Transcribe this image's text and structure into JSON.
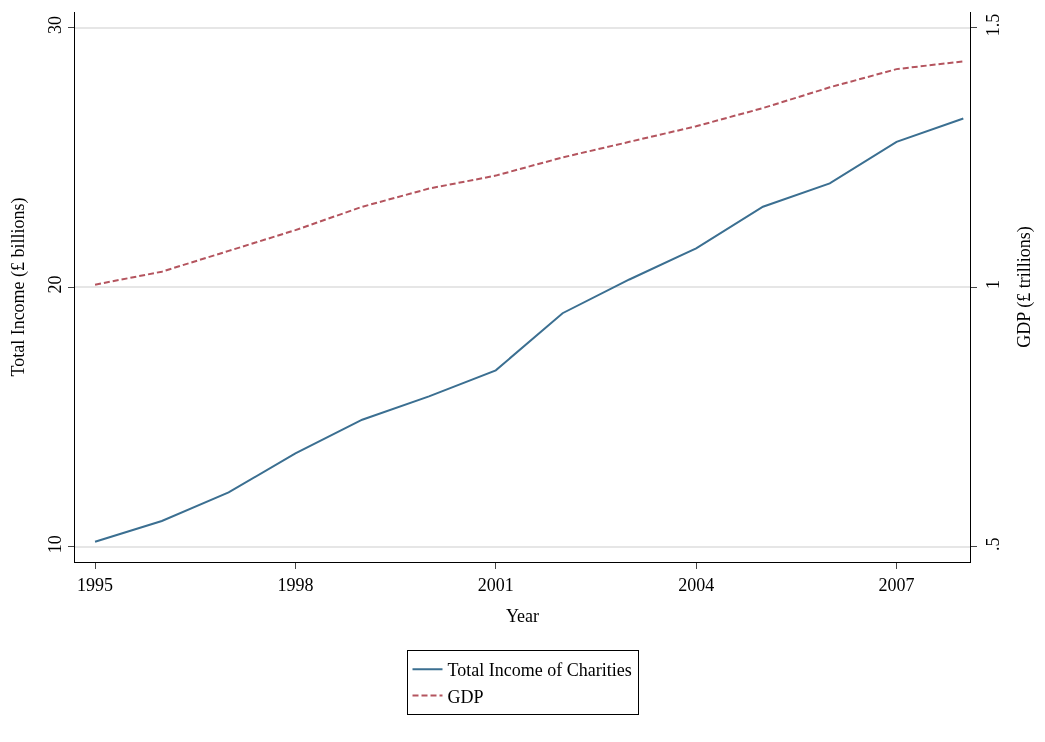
{
  "chart_data": {
    "type": "line",
    "xlabel": "Year",
    "ylabel": "Total Income (£ billions)",
    "y2label": "GDP (£ trillions)",
    "x": [
      1995,
      1996,
      1997,
      1998,
      1999,
      2000,
      2001,
      2002,
      2003,
      2004,
      2005,
      2006,
      2007,
      2008
    ],
    "series": [
      {
        "name": "Total Income of Charities",
        "color": "#3b6f91",
        "line_style": "solid",
        "marker": "none",
        "values": [
          10.2,
          11.0,
          12.1,
          13.6,
          14.9,
          15.8,
          16.8,
          19.0,
          20.3,
          21.5,
          23.1,
          24.0,
          25.6,
          26.5
        ]
      },
      {
        "name": "GDP",
        "color": "#b4545e",
        "line_style": "dashed",
        "marker": "none",
        "axis": "y2",
        "values": [
          1.005,
          1.03,
          1.07,
          1.11,
          1.155,
          1.19,
          1.215,
          1.25,
          1.28,
          1.31,
          1.345,
          1.385,
          1.42,
          1.435
        ]
      }
    ],
    "xlim": [
      1994.7,
      2008.1
    ],
    "xticks": [
      1995,
      1998,
      2001,
      2004,
      2007
    ],
    "ylim": [
      9.42,
      30.6
    ],
    "yticks": [
      10,
      20,
      30
    ],
    "y2lim": [
      0.471,
      1.53
    ],
    "y2ticks": [
      {
        "value": 0.5,
        "label": ".5"
      },
      1,
      1.5
    ],
    "grid": "y",
    "legend": "bottom"
  }
}
